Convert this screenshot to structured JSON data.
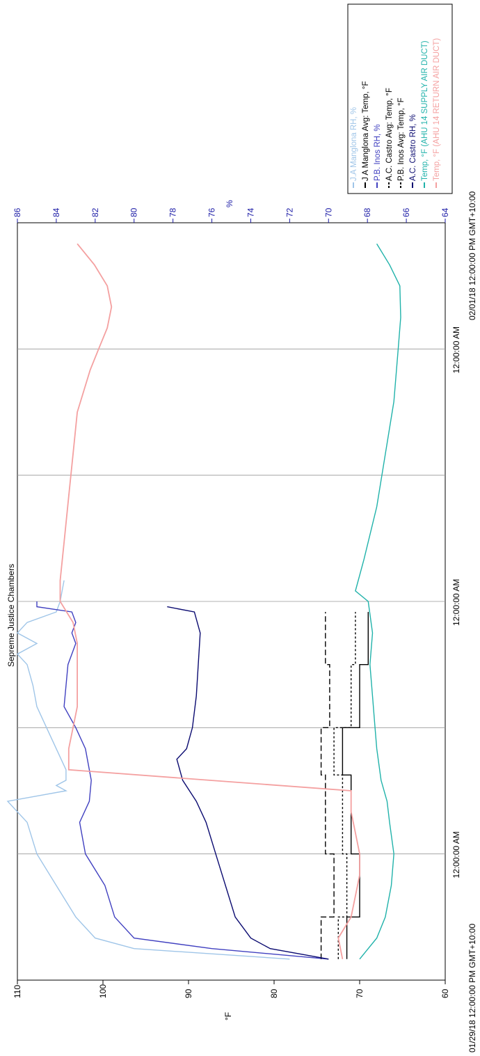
{
  "chart_data": {
    "type": "line",
    "title": "Sepreme Justice Chambers",
    "x_start_label": "01/29/18 12:00:00 PM GMT+10:00",
    "x_end_label": "02/01/18 12:00:00 PM GMT+10:00",
    "x_ticks": [
      "12:00:00 AM",
      "12:00:00 AM",
      "12:00:00 AM"
    ],
    "ylabel_left": "°F",
    "ylabel_right": "%",
    "ylim_left": [
      60,
      110
    ],
    "ylim_right": [
      64,
      86
    ],
    "yticks_left": [
      60,
      70,
      80,
      90,
      100,
      110
    ],
    "yticks_right": [
      64,
      66,
      68,
      70,
      72,
      74,
      76,
      78,
      80,
      82,
      84,
      86
    ],
    "x_unit": "hours since 01/29/18 12:00:00 PM",
    "xlim": [
      0,
      72
    ],
    "series": [
      {
        "name": "J.A Manglona RH, %",
        "axis": "right",
        "color": "#9fc5e8",
        "x": [
          2,
          3,
          4,
          6,
          9,
          12,
          15,
          17,
          18,
          18.5,
          19,
          20,
          22,
          24,
          26,
          28,
          30,
          31,
          32,
          33,
          34,
          35,
          36,
          38
        ],
        "values": [
          72,
          80,
          82,
          83,
          84,
          85,
          85.5,
          86.5,
          83.5,
          84,
          83.5,
          83.5,
          84,
          84.5,
          85,
          85.2,
          85.5,
          86,
          85,
          86,
          85.5,
          84,
          83.8,
          83.6
        ]
      },
      {
        "name": "J A Manglona Avg: Temp, °F",
        "axis": "left",
        "color": "#000000",
        "dash": "0",
        "x": [
          2,
          6,
          6,
          12,
          12,
          19.5,
          19.5,
          24,
          24,
          30,
          30,
          35
        ],
        "values": [
          71.5,
          71.5,
          70,
          70,
          71,
          71,
          72,
          72,
          70,
          70,
          69,
          69
        ]
      },
      {
        "name": "P.B. Inos RH, %",
        "axis": "right",
        "color": "#4040c0",
        "x": [
          2,
          3,
          4,
          6,
          9,
          12,
          15,
          17,
          19,
          22,
          24,
          26,
          28,
          30,
          32,
          33,
          34,
          35,
          35.5,
          36
        ],
        "values": [
          70,
          76,
          80,
          81,
          81.5,
          82.5,
          82.8,
          82.3,
          82.2,
          82.5,
          83,
          83.6,
          83.5,
          83.4,
          83,
          83.2,
          83,
          83.2,
          85,
          85
        ]
      },
      {
        "name": "A.C. Castro Avg: Temp, °F",
        "axis": "left",
        "color": "#000000",
        "dash": "8 4",
        "x": [
          2,
          6,
          6,
          12,
          12,
          19.5,
          19.5,
          24,
          24,
          30,
          30,
          35
        ],
        "values": [
          74.5,
          74.5,
          73,
          73,
          74,
          74,
          74.5,
          74.5,
          73.5,
          73.5,
          74,
          74
        ]
      },
      {
        "name": "P.B. Inos Avg: Temp, °F",
        "axis": "left",
        "color": "#000000",
        "dash": "3 3",
        "x": [
          2,
          6,
          6,
          12,
          12,
          19.5,
          19.5,
          24,
          24,
          30,
          30,
          35
        ],
        "values": [
          72.5,
          72.5,
          71.5,
          71.5,
          72,
          72,
          73,
          73,
          71,
          71,
          70.5,
          70.5
        ]
      },
      {
        "name": "A.C. Castro RH, %",
        "axis": "right",
        "color": "#0a0a70",
        "x": [
          2,
          3,
          4,
          6,
          9,
          12,
          15,
          17,
          19,
          21,
          22,
          24,
          27,
          30,
          33,
          35,
          35.5
        ],
        "values": [
          70,
          73,
          74,
          74.8,
          75.3,
          75.8,
          76.3,
          76.8,
          77.5,
          77.8,
          77.3,
          77,
          76.8,
          76.7,
          76.6,
          76.9,
          78.3
        ]
      },
      {
        "name": "Temp, °F (AHU 14 SUPPLY AIR DUCT)",
        "axis": "left",
        "color": "#20b2aa",
        "x": [
          2,
          3,
          4,
          6,
          9,
          12,
          15,
          17,
          19,
          22,
          24,
          27,
          30,
          33,
          36,
          37,
          40,
          45,
          50,
          55,
          60,
          63,
          66,
          68,
          70
        ],
        "values": [
          70,
          69,
          68,
          67,
          66.3,
          66,
          66.5,
          66.8,
          67.5,
          68,
          68.2,
          68.5,
          68.8,
          68.5,
          69,
          70.5,
          69.5,
          68,
          67,
          66,
          65.5,
          65.2,
          65.3,
          66.5,
          68
        ]
      },
      {
        "name": "Temp, °F (AHU 14 RETURN AIR DUCT)",
        "axis": "left",
        "color": "#f4a0a0",
        "x": [
          2,
          4,
          6,
          8,
          10,
          12,
          14,
          16,
          18,
          20,
          22,
          24,
          26,
          28,
          30,
          32,
          34,
          36,
          38,
          42,
          46,
          50,
          54,
          58,
          60,
          62,
          64,
          66,
          68,
          70
        ],
        "values": [
          72,
          72.5,
          71,
          70.5,
          70,
          70,
          70.5,
          71,
          71,
          104,
          104,
          103.5,
          103,
          103,
          103,
          103,
          103.5,
          105,
          105,
          104.5,
          104,
          103.5,
          103,
          101.5,
          100.5,
          99.5,
          99,
          99.5,
          101,
          103
        ]
      }
    ],
    "legend": {
      "placement": "top-right"
    }
  }
}
